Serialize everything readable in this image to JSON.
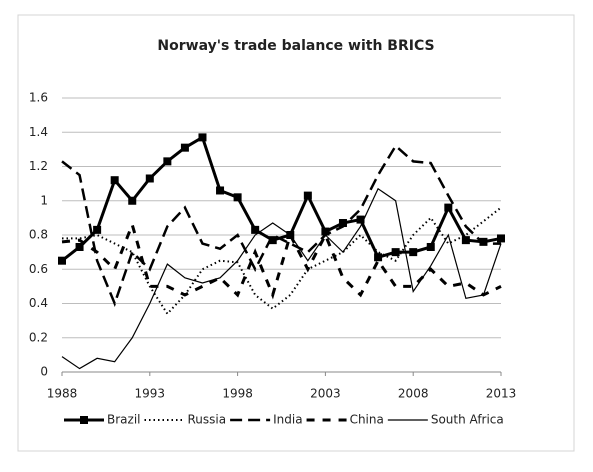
{
  "chart_data": {
    "type": "line",
    "title": "Norway's trade balance with BRICS",
    "x": [
      1988,
      1989,
      1990,
      1991,
      1992,
      1993,
      1994,
      1995,
      1996,
      1997,
      1998,
      1999,
      2000,
      2001,
      2002,
      2003,
      2004,
      2005,
      2006,
      2007,
      2008,
      2009,
      2010,
      2011,
      2012,
      2013
    ],
    "xlim": [
      1988,
      2013
    ],
    "xticks": [
      1988,
      1993,
      1998,
      2003,
      2008,
      2013
    ],
    "ylim": [
      0,
      1.6
    ],
    "yticks": [
      0,
      0.2,
      0.4,
      0.6,
      0.8,
      1,
      1.2,
      1.4,
      1.6
    ],
    "grid": true,
    "legend": "bottom",
    "series": [
      {
        "name": "Brazil",
        "color": "#000000",
        "style": "solid-thick",
        "marker": "square",
        "values": [
          0.65,
          0.73,
          0.83,
          1.12,
          1.0,
          1.13,
          1.23,
          1.31,
          1.37,
          1.06,
          1.02,
          0.83,
          0.77,
          0.8,
          1.03,
          0.82,
          0.87,
          0.89,
          0.67,
          0.7,
          0.7,
          0.73,
          0.96,
          0.77,
          0.76,
          0.78
        ]
      },
      {
        "name": "Russia",
        "color": "#000000",
        "style": "dotted",
        "values": [
          0.78,
          0.78,
          0.8,
          0.75,
          0.7,
          0.5,
          0.34,
          0.45,
          0.6,
          0.65,
          0.64,
          0.45,
          0.37,
          0.45,
          0.6,
          0.65,
          0.7,
          0.8,
          0.7,
          0.65,
          0.8,
          0.9,
          0.75,
          0.8,
          0.88,
          0.96
        ]
      },
      {
        "name": "India",
        "color": "#000000",
        "style": "longdash",
        "values": [
          1.23,
          1.15,
          0.65,
          0.4,
          0.7,
          0.6,
          0.85,
          0.96,
          0.75,
          0.72,
          0.8,
          0.6,
          0.8,
          0.75,
          0.7,
          0.8,
          0.85,
          0.95,
          1.15,
          1.32,
          1.23,
          1.22,
          1.03,
          0.85,
          0.75,
          0.75
        ]
      },
      {
        "name": "China",
        "color": "#000000",
        "style": "dashed",
        "values": [
          0.76,
          0.77,
          0.7,
          0.6,
          0.86,
          0.5,
          0.5,
          0.45,
          0.5,
          0.55,
          0.45,
          0.7,
          0.45,
          0.8,
          0.6,
          0.8,
          0.55,
          0.45,
          0.65,
          0.5,
          0.5,
          0.6,
          0.5,
          0.52,
          0.45,
          0.5
        ]
      },
      {
        "name": "South Africa",
        "color": "#000000",
        "style": "solid",
        "values": [
          0.09,
          0.02,
          0.08,
          0.06,
          0.2,
          0.4,
          0.63,
          0.55,
          0.52,
          0.55,
          0.65,
          0.8,
          0.87,
          0.8,
          0.65,
          0.8,
          0.7,
          0.85,
          1.07,
          1.0,
          0.47,
          0.62,
          0.8,
          0.43,
          0.45,
          0.75
        ]
      }
    ]
  }
}
